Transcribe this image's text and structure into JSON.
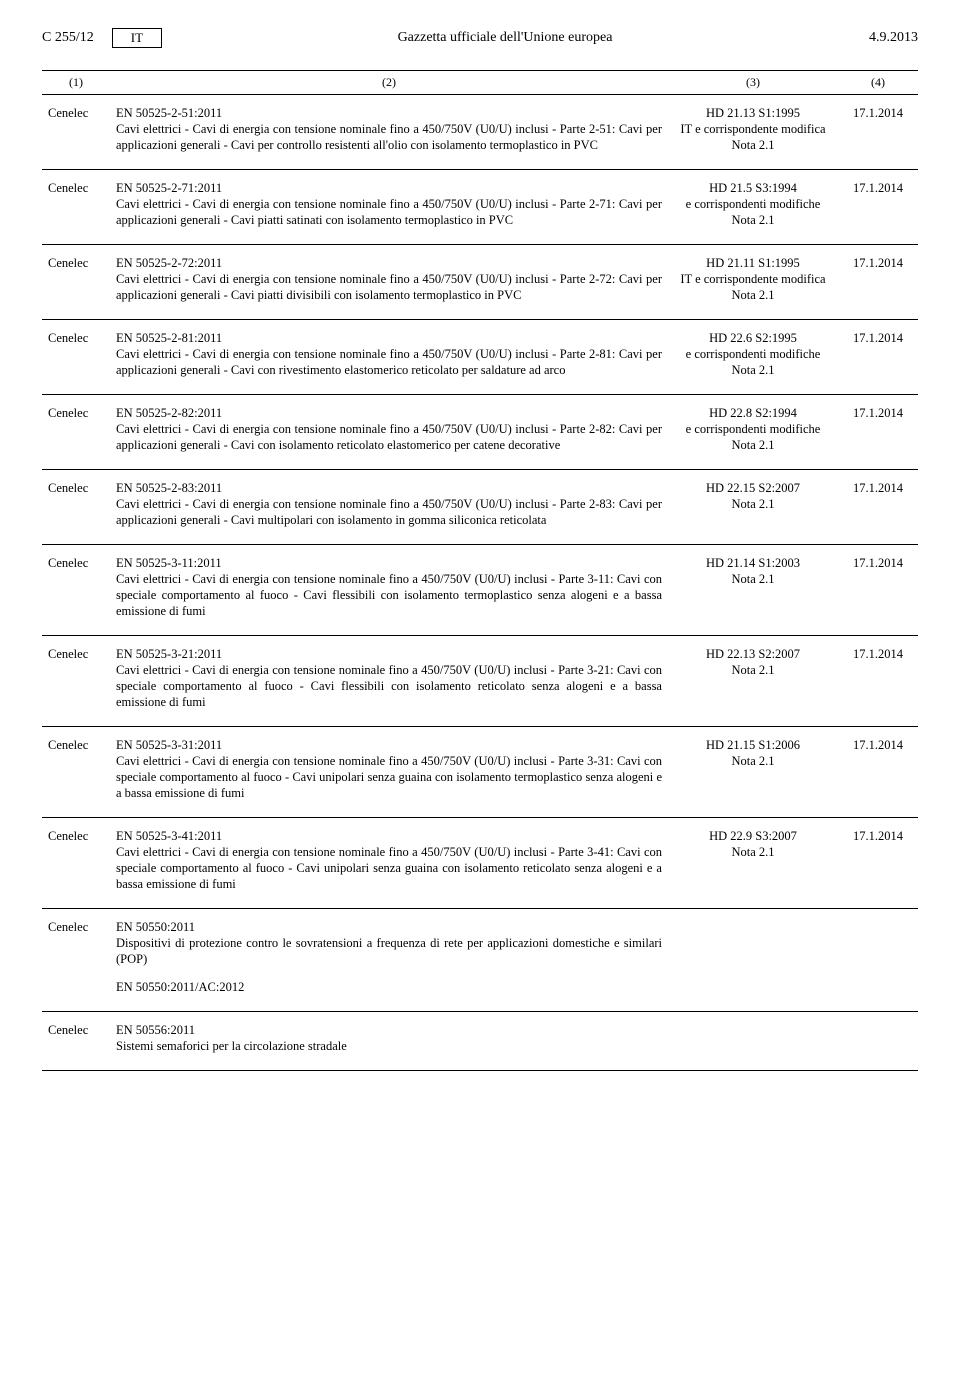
{
  "header": {
    "page_ref": "C 255/12",
    "lang": "IT",
    "title": "Gazzetta ufficiale dell'Unione europea",
    "date": "4.9.2013"
  },
  "columns": {
    "c1": "(1)",
    "c2": "(2)",
    "c3": "(3)",
    "c4": "(4)"
  },
  "rows": [
    {
      "org": "Cenelec",
      "title": "EN 50525-2-51:2011",
      "desc": "Cavi elettrici - Cavi di energia con tensione nominale fino a 450/750V (U0/U) inclusi - Parte 2-51: Cavi per applicazioni generali - Cavi per controllo resistenti all'olio con isolamento termoplastico in PVC",
      "ref_a": "HD 21.13 S1:1995",
      "ref_b": "IT e corrispondente modifica",
      "ref_c": "Nota 2.1",
      "date": "17.1.2014"
    },
    {
      "org": "Cenelec",
      "title": "EN 50525-2-71:2011",
      "desc": "Cavi elettrici - Cavi di energia con tensione nominale fino a 450/750V (U0/U) inclusi - Parte 2-71: Cavi per applicazioni generali - Cavi piatti satinati con isolamento termoplastico in PVC",
      "ref_a": "HD 21.5 S3:1994",
      "ref_b": "e corrispondenti modifiche",
      "ref_c": "Nota 2.1",
      "date": "17.1.2014"
    },
    {
      "org": "Cenelec",
      "title": "EN 50525-2-72:2011",
      "desc": "Cavi elettrici - Cavi di energia con tensione nominale fino a 450/750V (U0/U) inclusi - Parte 2-72: Cavi per applicazioni generali - Cavi piatti divisibili con isolamento termoplastico in PVC",
      "ref_a": "HD 21.11 S1:1995",
      "ref_b": "IT e corrispondente modifica",
      "ref_c": "Nota 2.1",
      "date": "17.1.2014"
    },
    {
      "org": "Cenelec",
      "title": "EN 50525-2-81:2011",
      "desc": "Cavi elettrici - Cavi di energia con tensione nominale fino a 450/750V (U0/U) inclusi - Parte 2-81: Cavi per applicazioni generali - Cavi con rivestimento elastomerico reticolato per saldature ad arco",
      "ref_a": "HD 22.6 S2:1995",
      "ref_b": "e corrispondenti modifiche",
      "ref_c": "Nota 2.1",
      "date": "17.1.2014"
    },
    {
      "org": "Cenelec",
      "title": "EN 50525-2-82:2011",
      "desc": "Cavi elettrici - Cavi di energia con tensione nominale fino a 450/750V (U0/U) inclusi - Parte 2-82: Cavi per applicazioni generali - Cavi con isolamento reticolato elastomerico per catene decorative",
      "ref_a": "HD 22.8 S2:1994",
      "ref_b": "e corrispondenti modifiche",
      "ref_c": "Nota 2.1",
      "date": "17.1.2014"
    },
    {
      "org": "Cenelec",
      "title": "EN 50525-2-83:2011",
      "desc": "Cavi elettrici - Cavi di energia con tensione nominale fino a 450/750V (U0/U) inclusi - Parte 2-83: Cavi per applicazioni generali - Cavi multipolari con isolamento in gomma siliconica reticolata",
      "ref_a": "HD 22.15 S2:2007",
      "ref_b": "Nota 2.1",
      "ref_c": "",
      "date": "17.1.2014"
    },
    {
      "org": "Cenelec",
      "title": "EN 50525-3-11:2011",
      "desc": "Cavi elettrici - Cavi di energia con tensione nominale fino a 450/750V (U0/U) inclusi - Parte 3-11: Cavi con speciale comportamento al fuoco - Cavi flessibili con isolamento termoplastico senza alogeni e a bassa emissione di fumi",
      "ref_a": "HD 21.14 S1:2003",
      "ref_b": "Nota 2.1",
      "ref_c": "",
      "date": "17.1.2014"
    },
    {
      "org": "Cenelec",
      "title": "EN 50525-3-21:2011",
      "desc": "Cavi elettrici - Cavi di energia con tensione nominale fino a 450/750V (U0/U) inclusi - Parte 3-21: Cavi con speciale comportamento al fuoco - Cavi flessibili con isolamento reticolato senza alogeni e a bassa emissione di fumi",
      "ref_a": "HD 22.13 S2:2007",
      "ref_b": "Nota 2.1",
      "ref_c": "",
      "date": "17.1.2014"
    },
    {
      "org": "Cenelec",
      "title": "EN 50525-3-31:2011",
      "desc": "Cavi elettrici - Cavi di energia con tensione nominale fino a 450/750V (U0/U) inclusi - Parte 3-31: Cavi con speciale comportamento al fuoco - Cavi unipolari senza guaina con isolamento termoplastico senza alogeni e a bassa emissione di fumi",
      "ref_a": "HD 21.15 S1:2006",
      "ref_b": "Nota 2.1",
      "ref_c": "",
      "date": "17.1.2014"
    },
    {
      "org": "Cenelec",
      "title": "EN 50525-3-41:2011",
      "desc": "Cavi elettrici - Cavi di energia con tensione nominale fino a 450/750V (U0/U) inclusi - Parte 3-41: Cavi con speciale comportamento al fuoco - Cavi unipolari senza guaina con isolamento reticolato senza alogeni e a bassa emissione di fumi",
      "ref_a": "HD 22.9 S3:2007",
      "ref_b": "Nota 2.1",
      "ref_c": "",
      "date": "17.1.2014"
    },
    {
      "org": "Cenelec",
      "title": "EN 50550:2011",
      "desc": "Dispositivi di protezione contro le sovratensioni a frequenza di rete per applicazioni domestiche e similari (POP)",
      "ref_a": "",
      "ref_b": "",
      "ref_c": "",
      "date": "",
      "no_bottom": true
    },
    {
      "org": "",
      "title": "EN 50550:2011/AC:2012",
      "desc": "",
      "ref_a": "",
      "ref_b": "",
      "ref_c": "",
      "date": "",
      "sub": true
    },
    {
      "org": "Cenelec",
      "title": "EN 50556:2011",
      "desc": "Sistemi semaforici per la circolazione stradale",
      "ref_a": "",
      "ref_b": "",
      "ref_c": "",
      "date": ""
    }
  ]
}
